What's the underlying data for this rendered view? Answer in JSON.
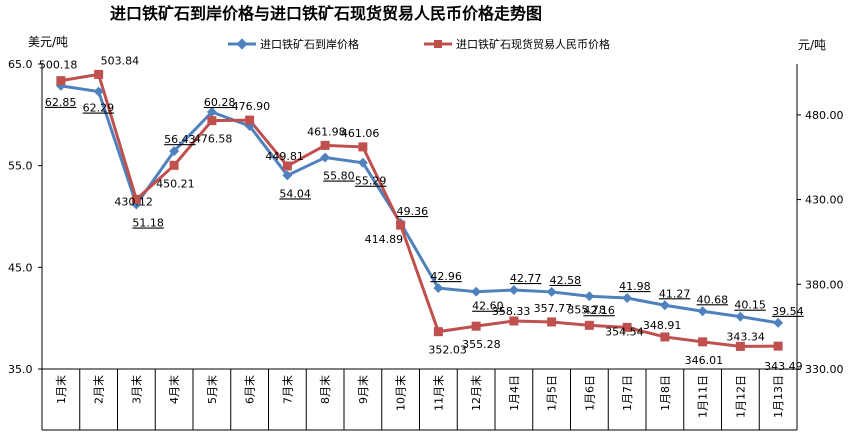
{
  "chart_data": {
    "type": "line",
    "title": "进口铁矿石到岸价格与进口铁矿石现货贸易人民币价格走势图",
    "left_unit": "美元/吨",
    "right_unit": "元/吨",
    "categories": [
      "1月末",
      "2月末",
      "3月末",
      "4月末",
      "5月末",
      "6月末",
      "7月末",
      "8月末",
      "9月末",
      "10月末",
      "11月末",
      "12月末",
      "1月4日",
      "1月5日",
      "1月6日",
      "1月7日",
      "1月8日",
      "1月11日",
      "1月12日",
      "1月13日"
    ],
    "left_axis": {
      "min": 35.0,
      "max": 65.0,
      "ticks": [
        "35.0",
        "45.0",
        "55.0",
        "65.0"
      ]
    },
    "right_axis": {
      "min": 330.0,
      "max": 510.0,
      "ticks": [
        "330.00",
        "380.00",
        "430.00",
        "480.00"
      ]
    },
    "grid": false,
    "legend_position": "top",
    "series": [
      {
        "name": "进口铁矿石到岸价格",
        "axis": "left",
        "color": "#4F81BD",
        "marker": "diamond",
        "values": [
          62.85,
          62.29,
          51.18,
          56.43,
          60.28,
          58.9,
          54.04,
          55.8,
          55.29,
          49.36,
          42.96,
          42.6,
          42.77,
          42.58,
          42.16,
          41.98,
          41.27,
          40.68,
          40.15,
          39.54
        ],
        "labels": [
          "62.85",
          "62.29",
          "51.18",
          "56.43",
          "60.28",
          "",
          "54.04",
          "55.80",
          "55.29",
          "49.36",
          "42.96",
          "42.60",
          "42.77",
          "42.58",
          "42.16",
          "41.98",
          "41.27",
          "40.68",
          "40.15",
          "39.54"
        ]
      },
      {
        "name": "进口铁矿石现货贸易人民币价格",
        "axis": "right",
        "color": "#C0504D",
        "marker": "square",
        "values": [
          500.18,
          503.84,
          430.12,
          450.21,
          476.58,
          476.9,
          449.81,
          461.98,
          461.06,
          414.89,
          352.03,
          355.28,
          358.33,
          357.77,
          355.78,
          354.54,
          348.91,
          346.01,
          343.34,
          343.49
        ],
        "labels": [
          "500.18",
          "503.84",
          "430.12",
          "450.21",
          "476.58",
          "476.90",
          "449.81",
          "461.98",
          "461.06",
          "414.89",
          "352.03",
          "355.28",
          "358.33",
          "357.77",
          "355.78",
          "354.54",
          "348.91",
          "346.01",
          "343.34",
          "343.49"
        ]
      }
    ]
  }
}
